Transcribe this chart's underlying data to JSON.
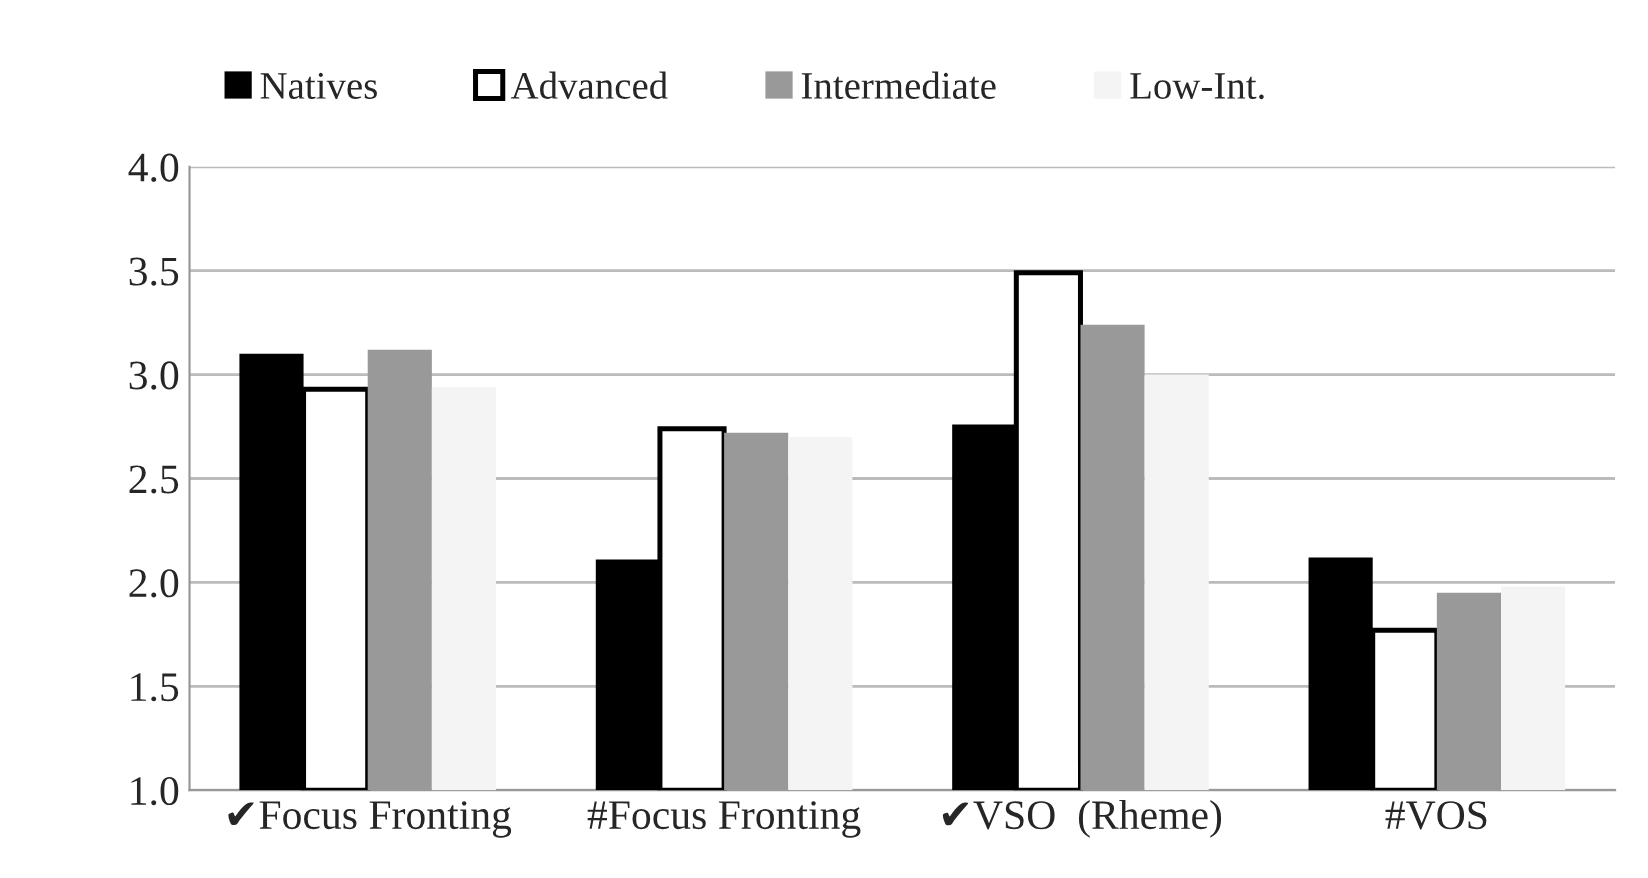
{
  "chart_data": {
    "type": "bar",
    "categories": [
      "✔Focus Fronting",
      "#Focus Fronting",
      "✔VSO  (Rheme)",
      "#VOS"
    ],
    "series": [
      {
        "name": "Natives",
        "color": "#000000",
        "values": [
          3.1,
          2.11,
          2.76,
          2.12
        ]
      },
      {
        "name": "Advanced",
        "color": "#ffffff",
        "values": [
          2.93,
          2.74,
          3.49,
          1.77
        ]
      },
      {
        "name": "Intermediate",
        "color": "#999999",
        "values": [
          3.12,
          2.72,
          3.24,
          1.95
        ]
      },
      {
        "name": "Low-Int.",
        "color": "#f4f4f4",
        "values": [
          2.94,
          2.7,
          3.0,
          1.98
        ]
      }
    ],
    "ylim": [
      1.0,
      4.0
    ],
    "yticks": [
      {
        "value": 1.0,
        "label": "1.0"
      },
      {
        "value": 1.5,
        "label": "1.5"
      },
      {
        "value": 2.0,
        "label": "2.0"
      },
      {
        "value": 2.5,
        "label": "2.5"
      },
      {
        "value": 3.0,
        "label": "3.0"
      },
      {
        "value": 3.5,
        "label": "3.5"
      },
      {
        "value": 4.0,
        "label": "4.0"
      }
    ],
    "grid": "y",
    "legend": "top"
  }
}
